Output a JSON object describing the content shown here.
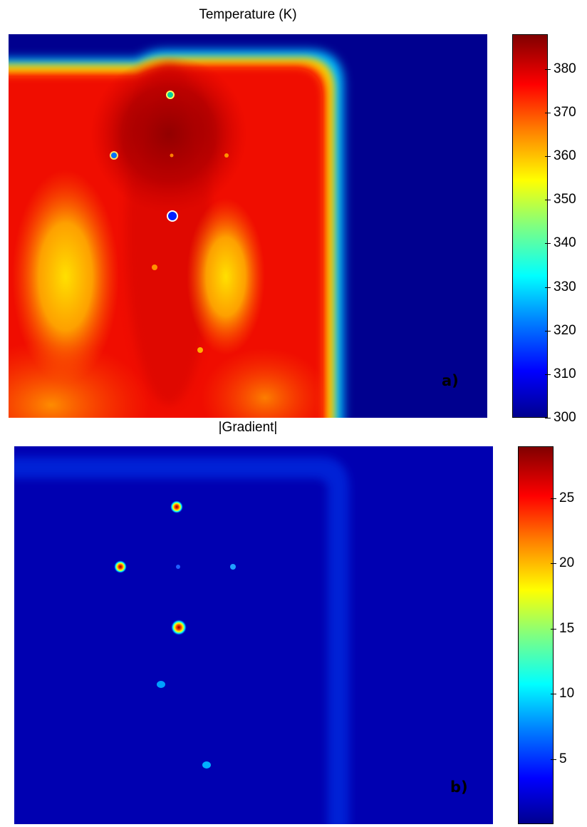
{
  "chart_data": [
    {
      "type": "heatmap",
      "title": "Temperature (K)",
      "panel_label": "a)",
      "colorbar": {
        "min": 300,
        "max": 388,
        "ticks": [
          "300",
          "310",
          "320",
          "330",
          "340",
          "350",
          "360",
          "370",
          "380"
        ]
      },
      "colormap": [
        "#00008f",
        "#0000ff",
        "#0080ff",
        "#00ffff",
        "#80ff80",
        "#ffff00",
        "#ff8000",
        "#ff0000",
        "#800000"
      ],
      "background_value": 304,
      "features": [
        {
          "desc": "hot region",
          "value": 386
        },
        {
          "desc": "yellow spot left",
          "value": 350
        },
        {
          "desc": "yellow spot center-right",
          "value": 356
        }
      ]
    },
    {
      "type": "heatmap",
      "title": "|Gradient|",
      "panel_label": "b)",
      "colorbar": {
        "min": 0,
        "max": 29,
        "ticks": [
          "5",
          "10",
          "15",
          "20",
          "25"
        ]
      },
      "colormap": [
        "#00008f",
        "#0000ff",
        "#0080ff",
        "#00ffff",
        "#80ff80",
        "#ffff00",
        "#ff8000",
        "#ff0000",
        "#800000"
      ],
      "background_value": 2,
      "features": [
        {
          "desc": "hot spot top",
          "value": 28
        },
        {
          "desc": "hot spot left",
          "value": 24
        },
        {
          "desc": "hot spot center",
          "value": 27
        }
      ]
    }
  ]
}
